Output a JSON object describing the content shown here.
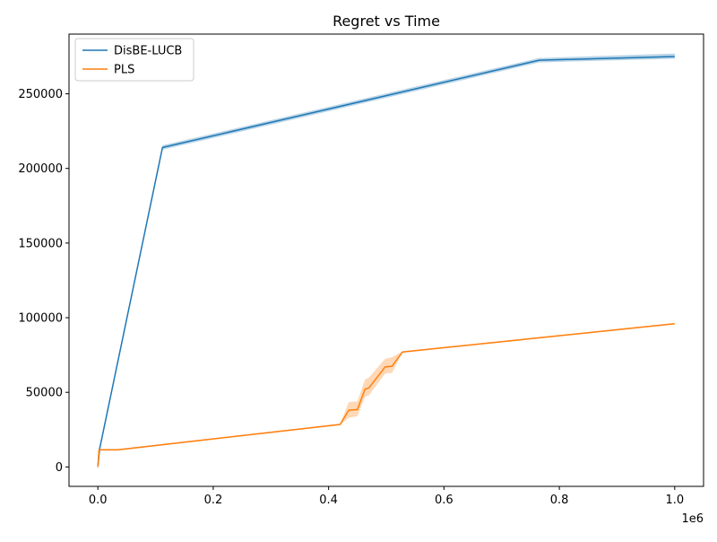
{
  "chart_data": {
    "type": "line",
    "title": "Regret vs Time",
    "xlabel": "",
    "ylabel": "",
    "x_offset_label": "1e6",
    "xlim": [
      -0.05,
      1.05
    ],
    "ylim": [
      -13000,
      290000
    ],
    "x_ticks": [
      0.0,
      0.2,
      0.4,
      0.6,
      0.8,
      1.0
    ],
    "x_tick_labels": [
      "0.0",
      "0.2",
      "0.4",
      "0.6",
      "0.8",
      "1.0"
    ],
    "y_ticks": [
      0,
      50000,
      100000,
      150000,
      200000,
      250000
    ],
    "y_tick_labels": [
      "0",
      "50000",
      "100000",
      "150000",
      "200000",
      "250000"
    ],
    "grid": false,
    "legend_position": "top-left",
    "series": [
      {
        "name": "DisBE-LUCB",
        "color": "#1f77b4",
        "band_color": "#1f77b4",
        "points": [
          [
            0,
            0
          ],
          [
            0.003,
            12000
          ],
          [
            0.112,
            214000
          ],
          [
            0.765,
            272500
          ],
          [
            1.0,
            275000
          ]
        ],
        "band_lower": [
          [
            0,
            0
          ],
          [
            0.003,
            11000
          ],
          [
            0.112,
            212500
          ],
          [
            0.765,
            271000
          ],
          [
            1.0,
            273500
          ]
        ],
        "band_upper": [
          [
            0,
            0
          ],
          [
            0.003,
            13000
          ],
          [
            0.112,
            215500
          ],
          [
            0.765,
            274000
          ],
          [
            1.0,
            277000
          ]
        ]
      },
      {
        "name": "PLS",
        "color": "#ff7f0e",
        "band_color": "#ff7f0e",
        "points": [
          [
            0,
            0
          ],
          [
            0.002,
            11500
          ],
          [
            0.035,
            11500
          ],
          [
            0.42,
            28500
          ],
          [
            0.435,
            38000
          ],
          [
            0.45,
            38500
          ],
          [
            0.463,
            52000
          ],
          [
            0.47,
            53000
          ],
          [
            0.498,
            67000
          ],
          [
            0.51,
            67500
          ],
          [
            0.528,
            77000
          ],
          [
            1.0,
            96000
          ]
        ],
        "band_lower": [
          [
            0,
            0
          ],
          [
            0.002,
            11000
          ],
          [
            0.035,
            11000
          ],
          [
            0.42,
            28000
          ],
          [
            0.435,
            33000
          ],
          [
            0.45,
            34000
          ],
          [
            0.463,
            47000
          ],
          [
            0.47,
            48000
          ],
          [
            0.498,
            62500
          ],
          [
            0.51,
            63000
          ],
          [
            0.528,
            76500
          ],
          [
            1.0,
            95500
          ]
        ],
        "band_upper": [
          [
            0,
            0
          ],
          [
            0.002,
            12000
          ],
          [
            0.035,
            12000
          ],
          [
            0.42,
            29000
          ],
          [
            0.435,
            43500
          ],
          [
            0.45,
            44000
          ],
          [
            0.463,
            58500
          ],
          [
            0.47,
            60000
          ],
          [
            0.498,
            72500
          ],
          [
            0.51,
            73500
          ],
          [
            0.528,
            77500
          ],
          [
            1.0,
            96500
          ]
        ]
      }
    ]
  }
}
